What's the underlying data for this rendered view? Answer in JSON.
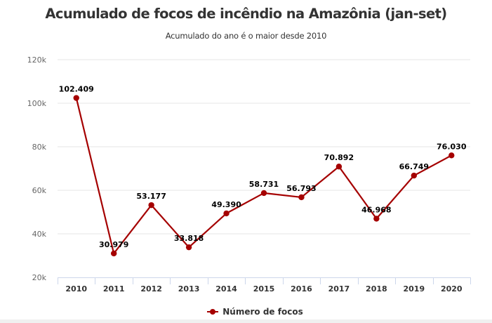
{
  "chart_data": {
    "type": "line",
    "title": "Acumulado de focos de incêndio na Amazônia (jan-set)",
    "subtitle": "Acumulado do ano é o maior desde 2010",
    "xlabel": "",
    "ylabel": "",
    "categories": [
      "2010",
      "2011",
      "2012",
      "2013",
      "2014",
      "2015",
      "2016",
      "2017",
      "2018",
      "2019",
      "2020"
    ],
    "series": [
      {
        "name": "Número de focos",
        "color": "#a50000",
        "values": [
          102409,
          30979,
          53177,
          33818,
          49390,
          58731,
          56793,
          70892,
          46968,
          66749,
          76030
        ],
        "labels": [
          "102.409",
          "30.979",
          "53.177",
          "33.818",
          "49.390",
          "58.731",
          "56.793",
          "70.892",
          "46.968",
          "66.749",
          "76.030"
        ]
      }
    ],
    "ylim": [
      20000,
      120000
    ],
    "yticks": [
      20000,
      40000,
      60000,
      80000,
      100000,
      120000
    ],
    "ytick_labels": [
      "20k",
      "40k",
      "60k",
      "80k",
      "100k",
      "120k"
    ],
    "grid": true,
    "legend_position": "bottom-center"
  }
}
